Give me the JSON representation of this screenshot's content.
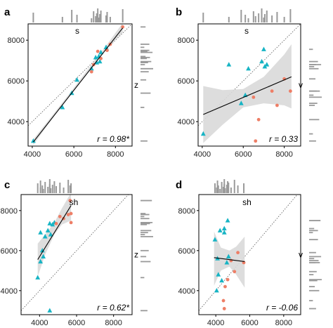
{
  "colors": {
    "teal": "#17B4C4",
    "salmon": "#EE7E66",
    "ci_band": "#D9D9D9",
    "fit_line": "#000000",
    "identity_line": "#555555",
    "rug": "#9A9A9A"
  },
  "chart_data": [
    {
      "type": "scatter",
      "panel": "a",
      "top_label": "s",
      "right_label": "z",
      "annotation": "r = 0.98*",
      "xlim": [
        3800,
        8800
      ],
      "ylim": [
        2800,
        8800
      ],
      "xticks": [
        4000,
        6000,
        8000
      ],
      "yticks": [
        4000,
        6000,
        8000
      ],
      "x_tick_labels": [
        "4000",
        "6000",
        "8000"
      ],
      "y_tick_labels": [
        "4000",
        "6000",
        "8000"
      ],
      "identity_line": true,
      "fit": {
        "x": [
          4050,
          8350
        ],
        "y": [
          3000,
          8600
        ]
      },
      "band": {
        "x": [
          4050,
          5000,
          6000,
          6800,
          7500,
          8350
        ],
        "lower": [
          2850,
          4200,
          5560,
          6600,
          7480,
          8380
        ],
        "upper": [
          3130,
          4350,
          5660,
          6740,
          7650,
          8850
        ]
      },
      "series": [
        {
          "color": "teal",
          "marker": "triangle",
          "x": [
            4050,
            5450,
            5900,
            6150,
            6850,
            7050,
            7100,
            7200,
            7250,
            7300,
            7550
          ],
          "y": [
            3050,
            4700,
            5400,
            6050,
            6600,
            7150,
            6900,
            7200,
            6950,
            7400,
            7650
          ]
        },
        {
          "color": "salmon",
          "marker": "circle",
          "x": [
            6850,
            6950,
            7150,
            7300,
            7600,
            7750,
            8350
          ],
          "y": [
            6450,
            6800,
            7450,
            7100,
            7500,
            7800,
            8650
          ]
        }
      ],
      "rug_top": [
        4050,
        5450,
        5900,
        6150,
        6850,
        6950,
        7050,
        7100,
        7150,
        7200,
        7250,
        7300,
        7550,
        7600,
        7750,
        8350
      ],
      "rug_right": [
        3050,
        4700,
        5400,
        6050,
        6450,
        6600,
        6800,
        6900,
        6950,
        7100,
        7150,
        7200,
        7400,
        7450,
        7500,
        7650,
        7800,
        8650
      ]
    },
    {
      "type": "scatter",
      "panel": "b",
      "top_label": "s",
      "right_label": "v",
      "annotation": "r = 0.33",
      "xlim": [
        3800,
        8800
      ],
      "ylim": [
        2800,
        8800
      ],
      "xticks": [
        4000,
        6000,
        8000
      ],
      "yticks": [
        4000,
        6000,
        8000
      ],
      "x_tick_labels": [
        "4000",
        "6000",
        "8000"
      ],
      "y_tick_labels": [
        "4000",
        "6000",
        "8000"
      ],
      "identity_line": true,
      "fit": {
        "x": [
          4050,
          8350
        ],
        "y": [
          4350,
          6200
        ]
      },
      "band": {
        "x": [
          4050,
          5000,
          6000,
          7000,
          8000,
          8350
        ],
        "lower": [
          2950,
          3850,
          4700,
          4900,
          4800,
          4650
        ],
        "upper": [
          5750,
          5550,
          5600,
          6200,
          7300,
          7800
        ]
      },
      "series": [
        {
          "color": "teal",
          "marker": "triangle",
          "x": [
            4050,
            5300,
            5900,
            6100,
            6250,
            6900,
            7000,
            7050,
            7150
          ],
          "y": [
            3400,
            6800,
            4900,
            5300,
            6600,
            6950,
            7550,
            6700,
            6800
          ]
        },
        {
          "color": "salmon",
          "marker": "circle",
          "x": [
            6500,
            6600,
            6750,
            7400,
            7650,
            8000,
            8300
          ],
          "y": [
            5200,
            3050,
            4100,
            5500,
            4800,
            6100,
            5500
          ]
        }
      ],
      "rug_top": [
        4050,
        5300,
        5900,
        6100,
        6250,
        6500,
        6600,
        6750,
        6900,
        7000,
        7050,
        7150,
        7400,
        7650,
        8000,
        8300
      ],
      "rug_right": [
        3050,
        3400,
        4100,
        4800,
        4900,
        5200,
        5300,
        5500,
        5500,
        6100,
        6600,
        6700,
        6800,
        6800,
        6950,
        7550
      ]
    },
    {
      "type": "scatter",
      "panel": "c",
      "top_label": "sh",
      "right_label": "z",
      "annotation": "r = 0.62*",
      "xlim": [
        3000,
        9000
      ],
      "ylim": [
        2800,
        8800
      ],
      "xticks": [
        4000,
        6000,
        8000
      ],
      "yticks": [
        4000,
        6000,
        8000
      ],
      "x_tick_labels": [
        "4000",
        "6000",
        "8000"
      ],
      "y_tick_labels": [
        "4000",
        "6000",
        "8000"
      ],
      "identity_line": true,
      "fit": {
        "x": [
          3900,
          5700
        ],
        "y": [
          5550,
          8250
        ]
      },
      "band": {
        "x": [
          3900,
          4300,
          4800,
          5200,
          5700
        ],
        "lower": [
          4700,
          5800,
          6800,
          7300,
          7500
        ],
        "upper": [
          6350,
          6800,
          7400,
          8100,
          8900
        ]
      },
      "series": [
        {
          "color": "teal",
          "marker": "triangle",
          "x": [
            3900,
            4050,
            4050,
            4150,
            4200,
            4300,
            4450,
            4550,
            4600,
            4700,
            4800,
            4550
          ],
          "y": [
            4650,
            5450,
            6900,
            6000,
            5700,
            6700,
            7000,
            7350,
            6800,
            7300,
            7400,
            3000
          ]
        },
        {
          "color": "salmon",
          "marker": "circle",
          "x": [
            4900,
            5100,
            5300,
            5550,
            5650,
            5700,
            5700
          ],
          "y": [
            7350,
            7700,
            7600,
            7800,
            8500,
            7850,
            7400
          ]
        }
      ],
      "rug_top": [
        3900,
        4050,
        4050,
        4150,
        4200,
        4300,
        4450,
        4550,
        4550,
        4600,
        4700,
        4800,
        4900,
        5100,
        5300,
        5550,
        5650,
        5700
      ],
      "rug_right": [
        3000,
        4650,
        5450,
        5700,
        6000,
        6700,
        6800,
        6900,
        7000,
        7300,
        7350,
        7350,
        7400,
        7400,
        7600,
        7700,
        7800,
        7850,
        8500
      ]
    },
    {
      "type": "scatter",
      "panel": "d",
      "top_label": "sh",
      "right_label": "v",
      "annotation": "r = -0.06",
      "xlim": [
        3000,
        9000
      ],
      "ylim": [
        2800,
        8800
      ],
      "xticks": [
        4000,
        6000,
        8000
      ],
      "yticks": [
        4000,
        6000,
        8000
      ],
      "x_tick_labels": [
        "4000",
        "6000",
        "8000"
      ],
      "y_tick_labels": [
        "4000",
        "6000",
        "8000"
      ],
      "identity_line": true,
      "fit": {
        "x": [
          3900,
          5700
        ],
        "y": [
          5650,
          5450
        ]
      },
      "band": {
        "x": [
          3900,
          4300,
          4800,
          5200,
          5700
        ],
        "lower": [
          4250,
          5000,
          5200,
          4800,
          4150
        ],
        "upper": [
          6950,
          6150,
          6000,
          6200,
          6700
        ]
      },
      "series": [
        {
          "color": "teal",
          "marker": "triangle",
          "x": [
            3950,
            4050,
            4100,
            4150,
            4250,
            4350,
            4500,
            4500,
            4650,
            4700,
            4750
          ],
          "y": [
            6550,
            4000,
            5600,
            4800,
            7000,
            4500,
            6900,
            7100,
            5400,
            7500,
            5700
          ]
        },
        {
          "color": "salmon",
          "marker": "circle",
          "x": [
            4450,
            4500,
            4550,
            4700,
            4900,
            5100,
            5300,
            5650
          ],
          "y": [
            3500,
            3100,
            4200,
            4550,
            5500,
            4950,
            5900,
            5400
          ]
        }
      ],
      "rug_top": [
        3950,
        4050,
        4100,
        4150,
        4250,
        4350,
        4450,
        4500,
        4500,
        4550,
        4650,
        4700,
        4700,
        4750,
        4900,
        5100,
        5300,
        5650
      ],
      "rug_right": [
        3100,
        3500,
        4000,
        4200,
        4500,
        4550,
        4800,
        4950,
        5400,
        5400,
        5500,
        5600,
        5700,
        5900,
        6550,
        6900,
        7000,
        7100,
        7500
      ]
    }
  ]
}
